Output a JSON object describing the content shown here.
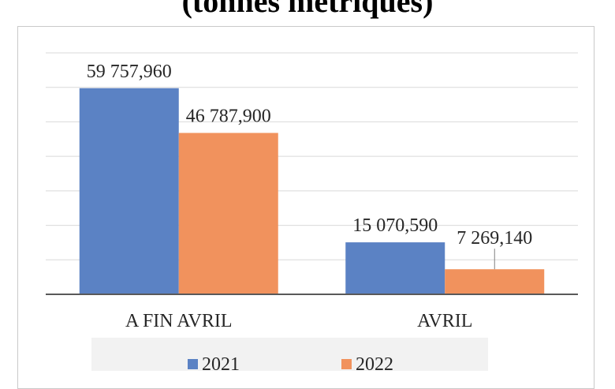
{
  "chart_data": {
    "type": "bar",
    "title": "(tonnes métriques)",
    "categories": [
      "A FIN AVRIL",
      "AVRIL"
    ],
    "series": [
      {
        "name": "2021",
        "values": [
          59757.96,
          15070.59
        ],
        "labels": [
          "59 757,960",
          "15 070,590"
        ],
        "color": "#5b82c4"
      },
      {
        "name": "2022",
        "values": [
          46787.9,
          7269.14
        ],
        "labels": [
          "46 787,900",
          "7 269,140"
        ],
        "color": "#f1925d"
      }
    ],
    "ylim": [
      0,
      70000
    ],
    "grid": true,
    "legend": "bottom"
  }
}
